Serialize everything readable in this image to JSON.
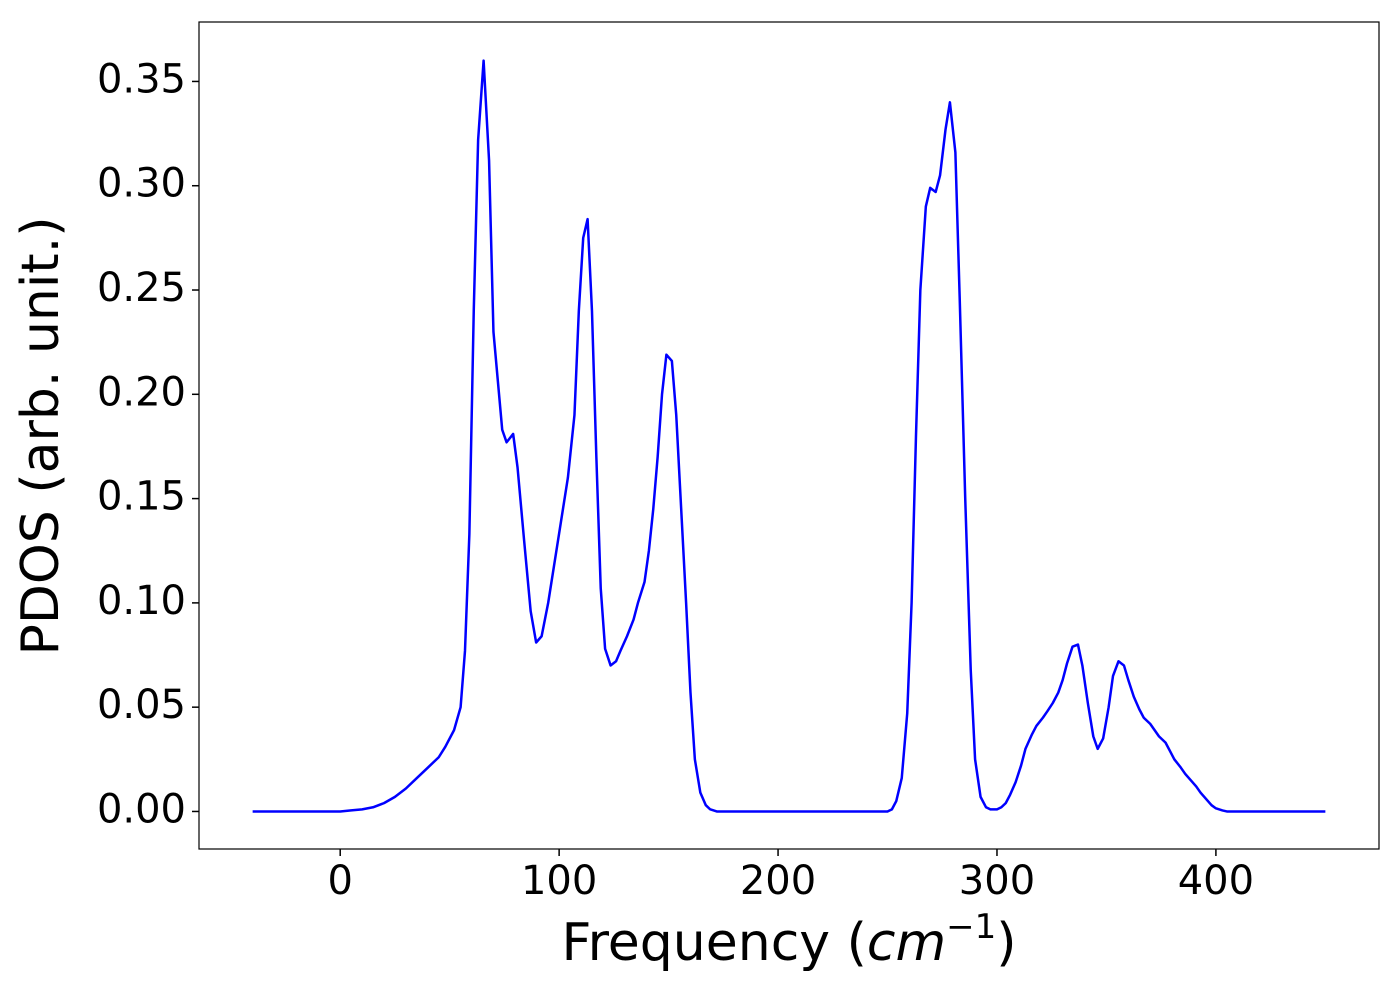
{
  "chart_data": {
    "type": "line",
    "xlabel": [
      "Frequency (",
      "cm",
      "−1",
      ")"
    ],
    "ylabel": "PDOS (arb. unit.)",
    "color": "#0000ff",
    "x": [
      -40,
      -30,
      -20,
      -10,
      0,
      5,
      10,
      15,
      20,
      25,
      30,
      35,
      40,
      45,
      48,
      52,
      55,
      57,
      59,
      61,
      63,
      65.5,
      68,
      70,
      74,
      76,
      79,
      81,
      84,
      87,
      89.5,
      92,
      95,
      98,
      101,
      104,
      107,
      109,
      111,
      113,
      115,
      117,
      119,
      121,
      123.5,
      126,
      128,
      131,
      134,
      136,
      139,
      141,
      143,
      145,
      147,
      149,
      151.5,
      153.5,
      156,
      158,
      160,
      162,
      164.5,
      167,
      169,
      172,
      180,
      200,
      220,
      240,
      250,
      252,
      254,
      256.5,
      259,
      261,
      263,
      265,
      267.5,
      269.5,
      272,
      274,
      276.5,
      278.5,
      281,
      283,
      285.5,
      288,
      290,
      292.5,
      295,
      297,
      300,
      302,
      304,
      306,
      308.5,
      311,
      313,
      316,
      318,
      321,
      323,
      325.5,
      328,
      330,
      332,
      334.5,
      337,
      339,
      341.5,
      344,
      346,
      348.5,
      351,
      353,
      355.5,
      358,
      360,
      362.5,
      365,
      367,
      370,
      372,
      374,
      377,
      379,
      381,
      384,
      386,
      388.5,
      391,
      393,
      395.5,
      398,
      400,
      403,
      405,
      420,
      440,
      450
    ],
    "values": [
      0,
      0,
      0,
      0,
      0,
      0.0005,
      0.001,
      0.002,
      0.004,
      0.007,
      0.011,
      0.016,
      0.021,
      0.026,
      0.031,
      0.039,
      0.05,
      0.077,
      0.133,
      0.24,
      0.322,
      0.36,
      0.312,
      0.23,
      0.183,
      0.177,
      0.181,
      0.165,
      0.13,
      0.096,
      0.081,
      0.084,
      0.1,
      0.12,
      0.14,
      0.16,
      0.19,
      0.24,
      0.275,
      0.284,
      0.24,
      0.17,
      0.107,
      0.078,
      0.07,
      0.072,
      0.077,
      0.084,
      0.092,
      0.1,
      0.11,
      0.125,
      0.145,
      0.17,
      0.2,
      0.219,
      0.216,
      0.19,
      0.14,
      0.1,
      0.057,
      0.025,
      0.009,
      0.003,
      0.001,
      0,
      0,
      0,
      0,
      0,
      0,
      0.001,
      0.005,
      0.016,
      0.047,
      0.1,
      0.18,
      0.25,
      0.29,
      0.299,
      0.297,
      0.305,
      0.327,
      0.34,
      0.316,
      0.245,
      0.15,
      0.068,
      0.025,
      0.007,
      0.002,
      0.001,
      0.001,
      0.002,
      0.004,
      0.008,
      0.014,
      0.022,
      0.03,
      0.037,
      0.041,
      0.045,
      0.048,
      0.052,
      0.057,
      0.063,
      0.071,
      0.079,
      0.08,
      0.07,
      0.052,
      0.036,
      0.03,
      0.035,
      0.05,
      0.065,
      0.072,
      0.07,
      0.063,
      0.055,
      0.049,
      0.045,
      0.042,
      0.039,
      0.036,
      0.033,
      0.029,
      0.025,
      0.021,
      0.018,
      0.015,
      0.012,
      0.009,
      0.006,
      0.003,
      0.0015,
      0.0005,
      0,
      0,
      0,
      0
    ],
    "xlim": [
      -64.5,
      474.5
    ],
    "ylim": [
      -0.018,
      0.3785
    ],
    "xticks": [
      0,
      100,
      200,
      300,
      400
    ],
    "yticks": [
      {
        "value": 0,
        "label": "0.00"
      },
      0.05,
      {
        "value": 0.1,
        "label": "0.10"
      },
      0.15,
      {
        "value": 0.2,
        "label": "0.20"
      },
      0.25,
      {
        "value": 0.3,
        "label": "0.30"
      },
      0.35
    ],
    "grid": false
  }
}
